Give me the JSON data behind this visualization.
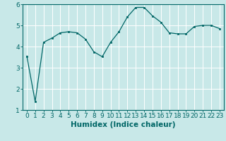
{
  "x": [
    0,
    1,
    2,
    3,
    4,
    5,
    6,
    7,
    8,
    9,
    10,
    11,
    12,
    13,
    14,
    15,
    16,
    17,
    18,
    19,
    20,
    21,
    22,
    23
  ],
  "y": [
    3.55,
    1.4,
    4.2,
    4.4,
    4.65,
    4.7,
    4.65,
    4.35,
    3.75,
    3.52,
    4.2,
    4.7,
    5.4,
    5.85,
    5.85,
    5.45,
    5.15,
    4.65,
    4.6,
    4.6,
    4.95,
    5.0,
    5.0,
    4.85
  ],
  "xlabel": "Humidex (Indice chaleur)",
  "ylim": [
    1,
    6
  ],
  "xlim_min": -0.5,
  "xlim_max": 23.5,
  "yticks": [
    1,
    2,
    3,
    4,
    5,
    6
  ],
  "xticks": [
    0,
    1,
    2,
    3,
    4,
    5,
    6,
    7,
    8,
    9,
    10,
    11,
    12,
    13,
    14,
    15,
    16,
    17,
    18,
    19,
    20,
    21,
    22,
    23
  ],
  "line_color": "#006666",
  "marker_color": "#006666",
  "bg_color": "#c8e8e8",
  "grid_color": "#ffffff",
  "axis_color": "#006666",
  "tick_label_color": "#006666",
  "xlabel_color": "#006666",
  "xlabel_fontsize": 7.5,
  "tick_fontsize": 6.5,
  "figwidth": 3.2,
  "figheight": 2.0,
  "dpi": 100
}
